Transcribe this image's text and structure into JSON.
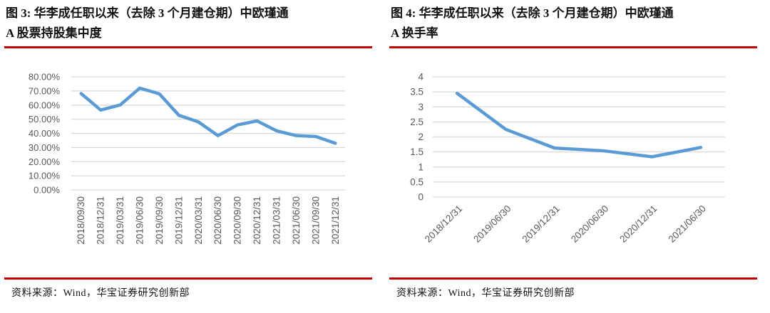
{
  "page": {
    "background": "#ffffff"
  },
  "colors": {
    "accent_red": "#C00000",
    "line_blue": "#5B9BD5",
    "grid_gray": "#D9D9D9",
    "tick_gray": "#595959"
  },
  "figures": [
    {
      "source": "资料来源：Wind，华宝证券研究创新部"
    },
    {
      "source": "资料来源：Wind，华宝证券研究创新部"
    }
  ],
  "chart_data": [
    {
      "type": "line",
      "title": "图 3: 华李成任职以来（去除 3 个月建仓期）中欧瑾通 A 股票持股集中度",
      "title_lines": [
        "图 3: 华李成任职以来（去除 3 个月建仓期）中欧瑾通",
        "A 股票持股集中度"
      ],
      "categories": [
        "2018/09/30",
        "2018/12/31",
        "2019/03/31",
        "2019/06/30",
        "2019/09/30",
        "2019/12/31",
        "2020/03/31",
        "2020/06/30",
        "2020/09/30",
        "2020/12/31",
        "2021/03/31",
        "2021/06/30",
        "2021/09/30",
        "2021/12/31"
      ],
      "values": [
        68.2,
        56.5,
        60.1,
        72.0,
        68.0,
        52.8,
        48.1,
        38.4,
        46.0,
        48.8,
        41.8,
        38.4,
        37.8,
        33.0
      ],
      "unit": "%",
      "xlabel": "",
      "ylabel": "",
      "ylim": [
        0,
        80
      ],
      "ytick_values": [
        0,
        10,
        20,
        30,
        40,
        50,
        60,
        70,
        80
      ],
      "ytick_labels": [
        "0.00%",
        "10.00%",
        "20.00%",
        "30.00%",
        "40.00%",
        "50.00%",
        "60.00%",
        "70.00%",
        "80.00%"
      ],
      "x_label_rotation": 90,
      "grid": true,
      "legend": "none",
      "line_color": "#5B9BD5"
    },
    {
      "type": "line",
      "title": "图 4: 华李成任职以来（去除 3 个月建仓期）中欧瑾通 A 换手率",
      "title_lines": [
        "图 4: 华李成任职以来（去除 3 个月建仓期）中欧瑾通",
        "A 换手率"
      ],
      "categories": [
        "2018/12/31",
        "2019/06/30",
        "2019/12/31",
        "2020/06/30",
        "2020/12/31",
        "2021/06/30"
      ],
      "values": [
        3.45,
        2.25,
        1.63,
        1.54,
        1.34,
        1.65
      ],
      "unit": "",
      "xlabel": "",
      "ylabel": "",
      "ylim": [
        0,
        4
      ],
      "ytick_values": [
        0,
        0.5,
        1,
        1.5,
        2,
        2.5,
        3,
        3.5,
        4
      ],
      "ytick_labels": [
        "0",
        "0.5",
        "1",
        "1.5",
        "2",
        "2.5",
        "3",
        "3.5",
        "4"
      ],
      "x_label_rotation": 45,
      "grid": true,
      "legend": "none",
      "line_color": "#5B9BD5"
    }
  ]
}
